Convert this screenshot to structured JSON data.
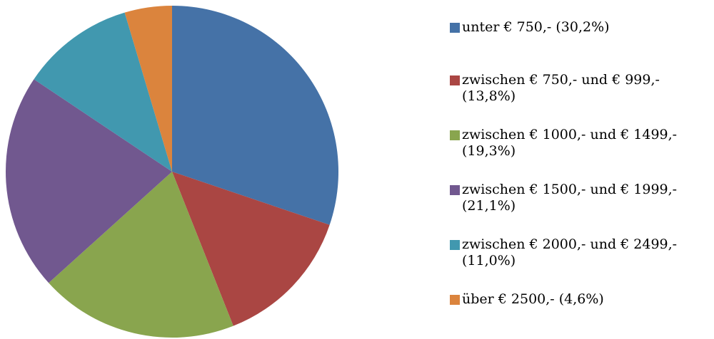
{
  "chart_data": {
    "type": "pie",
    "categories": [
      "unter € 750,- (30,2%)",
      "zwischen € 750,- und € 999,- (13,8%)",
      "zwischen € 1000,- und € 1499,- (19,3%)",
      "zwischen € 1500,- und € 1999,- (21,1%)",
      "zwischen € 2000,- und € 2499,- (11,0%)",
      "über € 2500,- (4,6%)"
    ],
    "values": [
      30.2,
      13.8,
      19.3,
      21.1,
      11.0,
      4.6
    ],
    "colors": [
      "#4572a7",
      "#aa4643",
      "#89a54e",
      "#71588f",
      "#4198af",
      "#db843d"
    ],
    "legend": "right"
  }
}
